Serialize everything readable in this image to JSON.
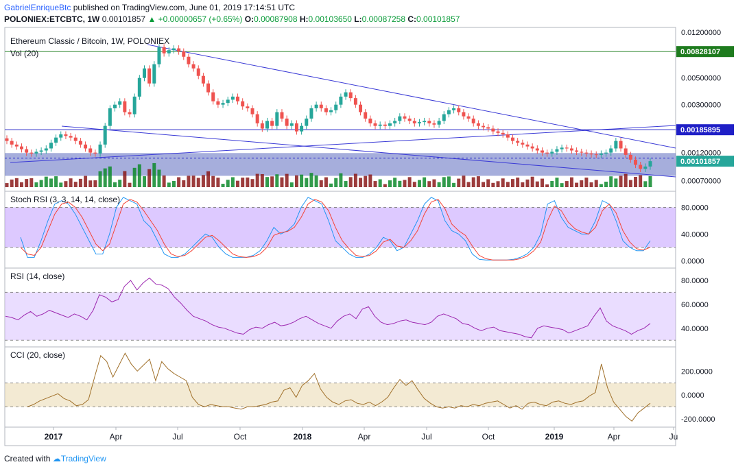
{
  "header": {
    "author": "GabrielEnriqueBtc",
    "published": " published on TradingView.com, June 01, 2019 17:14:51 UTC",
    "symbol": "POLONIEX:ETCBTC, 1W",
    "last": "0.00101857",
    "change": "▲ +0.00000657 (+0.65%)",
    "o_label": "O:",
    "o": "0.00087908",
    "h_label": "H:",
    "h": "0.00103650",
    "l_label": "L:",
    "l": "0.00087258",
    "c_label": "C:",
    "c": "0.00101857"
  },
  "footer": {
    "created": "Created with",
    "brand": "TradingView"
  },
  "chart_data": [
    {
      "type": "candlestick",
      "title": "Ethereum Classic / Bitcoin, 1W, POLONIEX",
      "volume_label": "Vol (20)",
      "y_scale": "log",
      "y_ticks": [
        "0.01200000",
        "0.00500000",
        "0.00300000",
        "0.00120000",
        "0.00070000"
      ],
      "price_labels": [
        {
          "value": "0.00828107",
          "color": "#1e7b1e"
        },
        {
          "value": "0.00185895",
          "color": "#1f1fc6"
        },
        {
          "value": "0.00101857",
          "color": "#26a69a"
        }
      ],
      "hlines": [
        0.00828107,
        0.00185895
      ],
      "x_ticks": [
        "2017",
        "Apr",
        "Jul",
        "Oct",
        "2018",
        "Apr",
        "Jul",
        "Oct",
        "2019",
        "Apr",
        "Ju"
      ],
      "close_series": [
        0.0015,
        0.0014,
        0.00135,
        0.00128,
        0.0012,
        0.00118,
        0.00122,
        0.00125,
        0.0013,
        0.00145,
        0.0016,
        0.0017,
        0.00165,
        0.0016,
        0.0015,
        0.0014,
        0.0013,
        0.0012,
        0.00118,
        0.0014,
        0.002,
        0.0028,
        0.003,
        0.0032,
        0.0026,
        0.0025,
        0.0035,
        0.005,
        0.006,
        0.0045,
        0.0065,
        0.009,
        0.008,
        0.0085,
        0.0088,
        0.0083,
        0.0075,
        0.0065,
        0.006,
        0.0052,
        0.0045,
        0.0038,
        0.0032,
        0.003,
        0.0031,
        0.0033,
        0.0035,
        0.0032,
        0.0029,
        0.0028,
        0.0025,
        0.0021,
        0.0019,
        0.0022,
        0.002,
        0.0026,
        0.0023,
        0.002,
        0.0021,
        0.0018,
        0.002,
        0.0023,
        0.0028,
        0.003,
        0.0028,
        0.0026,
        0.0027,
        0.003,
        0.0035,
        0.0038,
        0.0034,
        0.003,
        0.0026,
        0.0023,
        0.0021,
        0.002,
        0.00205,
        0.002,
        0.0021,
        0.0022,
        0.0024,
        0.0023,
        0.0022,
        0.0021,
        0.00215,
        0.0022,
        0.0021,
        0.00205,
        0.0022,
        0.0025,
        0.0027,
        0.0028,
        0.0026,
        0.0024,
        0.0023,
        0.0021,
        0.002,
        0.00195,
        0.0019,
        0.0018,
        0.00175,
        0.0017,
        0.0016,
        0.0015,
        0.00145,
        0.0014,
        0.00135,
        0.0013,
        0.00125,
        0.0012,
        0.00118,
        0.00122,
        0.00128,
        0.00132,
        0.0013,
        0.00125,
        0.00122,
        0.0012,
        0.00118,
        0.00116,
        0.00115,
        0.00118,
        0.0012,
        0.0013,
        0.0015,
        0.0013,
        0.00115,
        0.00105,
        0.00095,
        0.00088,
        0.00092,
        0.00101857
      ]
    },
    {
      "type": "line",
      "title": "Stoch RSI (3, 3, 14, 14, close)",
      "y_ticks": [
        "80.0000",
        "40.0000",
        "0.0000"
      ],
      "band": [
        20,
        80
      ],
      "series": [
        {
          "color": "#2196f3",
          "values": [
            35,
            5,
            5,
            30,
            60,
            85,
            90,
            85,
            70,
            50,
            30,
            10,
            10,
            40,
            80,
            95,
            90,
            85,
            60,
            50,
            30,
            10,
            5,
            5,
            10,
            20,
            30,
            40,
            35,
            20,
            10,
            5,
            5,
            5,
            8,
            15,
            30,
            50,
            40,
            45,
            55,
            80,
            95,
            90,
            85,
            60,
            30,
            20,
            10,
            5,
            5,
            10,
            20,
            35,
            30,
            15,
            20,
            40,
            60,
            85,
            95,
            90,
            60,
            45,
            40,
            30,
            10,
            2,
            1,
            1,
            1,
            1,
            2,
            5,
            10,
            20,
            40,
            85,
            90,
            65,
            50,
            45,
            40,
            40,
            60,
            90,
            85,
            60,
            30,
            20,
            15,
            15,
            30
          ]
        },
        {
          "color": "#f44336",
          "values": [
            20,
            10,
            8,
            20,
            45,
            70,
            85,
            88,
            80,
            65,
            45,
            25,
            15,
            25,
            55,
            85,
            92,
            88,
            75,
            60,
            45,
            25,
            10,
            6,
            8,
            15,
            25,
            35,
            38,
            30,
            20,
            10,
            6,
            5,
            6,
            10,
            20,
            38,
            42,
            44,
            50,
            65,
            85,
            92,
            88,
            75,
            50,
            30,
            18,
            8,
            6,
            8,
            15,
            28,
            32,
            22,
            20,
            30,
            45,
            70,
            88,
            92,
            78,
            55,
            45,
            38,
            22,
            8,
            3,
            1,
            1,
            1,
            1,
            3,
            7,
            15,
            28,
            60,
            82,
            75,
            58,
            48,
            43,
            40,
            50,
            75,
            85,
            72,
            45,
            28,
            18,
            16,
            20
          ]
        }
      ]
    },
    {
      "type": "line",
      "title": "RSI (14, close)",
      "y_ticks": [
        "80.0000",
        "60.0000",
        "40.0000"
      ],
      "band": [
        30,
        70
      ],
      "series": [
        {
          "color": "#9c27b0",
          "values": [
            50,
            49,
            47,
            51,
            54,
            50,
            52,
            55,
            53,
            51,
            49,
            52,
            50,
            47,
            55,
            68,
            66,
            62,
            64,
            75,
            80,
            72,
            78,
            82,
            77,
            76,
            73,
            66,
            61,
            55,
            50,
            48,
            46,
            43,
            41,
            40,
            38,
            36,
            35,
            39,
            41,
            40,
            43,
            45,
            42,
            43,
            45,
            48,
            50,
            47,
            44,
            42,
            40,
            46,
            50,
            52,
            48,
            56,
            58,
            50,
            45,
            43,
            44,
            46,
            47,
            45,
            44,
            43,
            45,
            50,
            52,
            50,
            48,
            44,
            43,
            40,
            38,
            40,
            41,
            38,
            37,
            36,
            35,
            33,
            32,
            40,
            42,
            41,
            40,
            39,
            36,
            38,
            40,
            42,
            50,
            57,
            46,
            42,
            40,
            38,
            35,
            38,
            40,
            44
          ]
        }
      ]
    },
    {
      "type": "line",
      "title": "CCI (20, close)",
      "y_ticks": [
        "200.0000",
        "0.0000",
        "-200.0000"
      ],
      "band": [
        -100,
        100
      ],
      "series": [
        {
          "color": "#a0702a",
          "values": [
            -100,
            -80,
            -50,
            -30,
            -10,
            10,
            -30,
            -50,
            -90,
            -80,
            -40,
            150,
            330,
            280,
            150,
            250,
            350,
            260,
            200,
            250,
            300,
            120,
            280,
            220,
            180,
            150,
            120,
            -20,
            -80,
            -100,
            -80,
            -90,
            -100,
            -100,
            -110,
            -120,
            -100,
            -100,
            -90,
            -80,
            -60,
            -50,
            40,
            60,
            -20,
            80,
            120,
            180,
            50,
            -20,
            -60,
            -80,
            -50,
            -40,
            -70,
            -80,
            -60,
            -90,
            -60,
            -20,
            60,
            130,
            80,
            120,
            40,
            -30,
            -70,
            -100,
            -110,
            -100,
            -110,
            -90,
            -100,
            -80,
            -90,
            -70,
            -60,
            -50,
            -80,
            -110,
            -90,
            -120,
            -70,
            -60,
            -80,
            -90,
            -60,
            -50,
            -70,
            -80,
            -60,
            -50,
            -10,
            20,
            260,
            60,
            -60,
            -120,
            -180,
            -220,
            -150,
            -110,
            -70
          ]
        }
      ]
    }
  ]
}
